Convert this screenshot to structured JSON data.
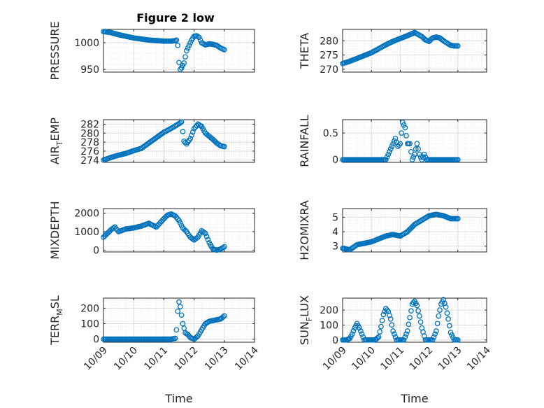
{
  "figure_title": "Figure 2 low",
  "colors": {
    "marker": "#0072BD",
    "axis": "#262626",
    "grid": "#dcdcdc"
  },
  "chart_data": [
    {
      "type": "scatter",
      "ylabel": "PRESSURE",
      "ylabel_sub": null,
      "ylim": [
        945,
        1025
      ],
      "yticks": [
        950,
        1000
      ],
      "yticklabels": [
        "950",
        "1000"
      ],
      "xlim": [
        "10/09",
        "10/14"
      ],
      "xtick_labels_shown": false,
      "xlabel": "",
      "x": [
        "10/09 00:00",
        "10/09 06:00",
        "10/09 12:00",
        "10/09 18:00",
        "10/10 00:00",
        "10/10 06:00",
        "10/10 12:00",
        "10/10 18:00",
        "10/11 00:00",
        "10/11 06:00",
        "10/11 09:00",
        "10/11 10:00",
        "10/11 11:00",
        "10/11 12:00",
        "10/11 13:00",
        "10/11 14:00",
        "10/11 16:00",
        "10/11 18:00",
        "10/11 20:00",
        "10/11 22:00",
        "10/12 00:00",
        "10/12 02:00",
        "10/12 04:00",
        "10/12 06:00",
        "10/12 09:00",
        "10/12 12:00",
        "10/12 15:00",
        "10/12 18:00",
        "10/12 21:00",
        "10/13 00:00"
      ],
      "y": [
        1021,
        1019,
        1015,
        1012,
        1009,
        1007,
        1005,
        1004,
        1003,
        1003,
        1004,
        1005,
        995,
        963,
        950,
        953,
        962,
        985,
        995,
        1005,
        1012,
        1013,
        1010,
        1000,
        996,
        998,
        997,
        995,
        990,
        987
      ]
    },
    {
      "type": "scatter",
      "ylabel": "THETA",
      "ylabel_sub": null,
      "ylim": [
        269,
        284
      ],
      "yticks": [
        270,
        275,
        280
      ],
      "yticklabels": [
        "270",
        "275",
        "280"
      ],
      "xlim": [
        "10/09",
        "10/14"
      ],
      "xtick_labels_shown": false,
      "xlabel": "",
      "x": [
        "10/09 00:00",
        "10/09 06:00",
        "10/09 12:00",
        "10/09 18:00",
        "10/10 00:00",
        "10/10 06:00",
        "10/10 12:00",
        "10/10 18:00",
        "10/11 00:00",
        "10/11 06:00",
        "10/11 12:00",
        "10/11 18:00",
        "10/11 21:00",
        "10/12 00:00",
        "10/12 03:00",
        "10/12 06:00",
        "10/12 09:00",
        "10/12 12:00",
        "10/12 15:00",
        "10/12 18:00",
        "10/12 21:00",
        "10/13 00:00"
      ],
      "y": [
        272,
        272.8,
        273.8,
        274.8,
        275.8,
        277.2,
        278.6,
        279.8,
        280.8,
        281.8,
        282.9,
        281.5,
        280.3,
        279.8,
        281,
        281.3,
        281,
        280,
        279.2,
        278.4,
        278.2,
        278.2
      ]
    },
    {
      "type": "scatter",
      "ylabel": "AIR",
      "ylabel_sub": "T",
      "ylabel_rest": "EMP",
      "ylim": [
        273.5,
        283
      ],
      "yticks": [
        274,
        276,
        278,
        280,
        282
      ],
      "yticklabels": [
        "274",
        "276",
        "278",
        "280",
        "282"
      ],
      "xlim": [
        "10/09",
        "10/14"
      ],
      "xtick_labels_shown": false,
      "xlabel": "",
      "x": [
        "10/09 00:00",
        "10/09 06:00",
        "10/09 12:00",
        "10/09 18:00",
        "10/10 00:00",
        "10/10 06:00",
        "10/10 12:00",
        "10/10 18:00",
        "10/11 00:00",
        "10/11 06:00",
        "10/11 12:00",
        "10/11 14:00",
        "10/11 16:00",
        "10/11 18:00",
        "10/11 21:00",
        "10/12 00:00",
        "10/12 03:00",
        "10/12 06:00",
        "10/12 09:00",
        "10/12 12:00",
        "10/12 15:00",
        "10/12 18:00",
        "10/12 21:00",
        "10/13 00:00"
      ],
      "y": [
        274,
        274.6,
        275.1,
        275.5,
        276.1,
        276.6,
        277.8,
        279,
        280.2,
        281.1,
        282.1,
        282.5,
        278.2,
        277.6,
        278.8,
        281,
        282,
        281.5,
        280,
        279.3,
        278.6,
        277.8,
        277.2,
        277
      ]
    },
    {
      "type": "scatter",
      "ylabel": "RAINFALL",
      "ylabel_sub": null,
      "ylim": [
        -0.05,
        0.75
      ],
      "yticks": [
        0,
        0.5
      ],
      "yticklabels": [
        "0",
        "0.5"
      ],
      "xlim": [
        "10/09",
        "10/14"
      ],
      "xtick_labels_shown": false,
      "xlabel": "",
      "x": [
        "10/09 00:00",
        "10/09 06:00",
        "10/09 12:00",
        "10/09 18:00",
        "10/10 00:00",
        "10/10 06:00",
        "10/10 12:00",
        "10/10 18:00",
        "10/10 20:00",
        "10/10 22:00",
        "10/11 00:00",
        "10/11 02:00",
        "10/11 04:00",
        "10/11 06:00",
        "10/11 08:00",
        "10/11 10:00",
        "10/11 12:00",
        "10/11 14:00",
        "10/11 16:00",
        "10/11 18:00",
        "10/11 20:00",
        "10/11 22:00",
        "10/12 00:00",
        "10/12 06:00",
        "10/12 12:00",
        "10/12 18:00",
        "10/13 00:00"
      ],
      "y": [
        0,
        0,
        0,
        0,
        0,
        0,
        0,
        0.3,
        0.4,
        0.25,
        0.3,
        0.7,
        0.6,
        0.3,
        0.3,
        0,
        0.1,
        0.3,
        0.1,
        0,
        0.1,
        0,
        0,
        0,
        0,
        0,
        0
      ]
    },
    {
      "type": "scatter",
      "ylabel": "MIXDEPTH",
      "ylabel_sub": null,
      "ylim": [
        -100,
        2250
      ],
      "yticks": [
        0,
        1000,
        2000
      ],
      "yticklabels": [
        "0",
        "1000",
        "2000"
      ],
      "xlim": [
        "10/09",
        "10/14"
      ],
      "xtick_labels_shown": false,
      "xlabel": "",
      "x": [
        "10/09 00:00",
        "10/09 03:00",
        "10/09 06:00",
        "10/09 09:00",
        "10/09 12:00",
        "10/09 18:00",
        "10/10 00:00",
        "10/10 06:00",
        "10/10 12:00",
        "10/10 18:00",
        "10/11 00:00",
        "10/11 03:00",
        "10/11 06:00",
        "10/11 09:00",
        "10/11 12:00",
        "10/11 15:00",
        "10/11 18:00",
        "10/11 21:00",
        "10/12 00:00",
        "10/12 03:00",
        "10/12 06:00",
        "10/12 09:00",
        "10/12 12:00",
        "10/12 15:00",
        "10/12 18:00",
        "10/12 21:00",
        "10/13 00:00"
      ],
      "y": [
        700,
        900,
        1100,
        1250,
        1000,
        1150,
        1200,
        1300,
        1450,
        1250,
        1700,
        1900,
        1950,
        1850,
        1600,
        1200,
        1000,
        700,
        550,
        700,
        1050,
        900,
        400,
        50,
        0,
        50,
        180
      ]
    },
    {
      "type": "scatter",
      "ylabel": "H2OMIXRA",
      "ylabel_sub": null,
      "ylim": [
        2.6,
        5.6
      ],
      "yticks": [
        3,
        4,
        5
      ],
      "yticklabels": [
        "3",
        "4",
        "5"
      ],
      "xlim": [
        "10/09",
        "10/14"
      ],
      "xtick_labels_shown": false,
      "xlabel": "",
      "x": [
        "10/09 00:00",
        "10/09 06:00",
        "10/09 12:00",
        "10/09 18:00",
        "10/10 00:00",
        "10/10 06:00",
        "10/10 12:00",
        "10/10 18:00",
        "10/11 00:00",
        "10/11 06:00",
        "10/11 12:00",
        "10/11 18:00",
        "10/12 00:00",
        "10/12 06:00",
        "10/12 12:00",
        "10/12 18:00",
        "10/13 00:00"
      ],
      "y": [
        2.85,
        2.75,
        3.1,
        3.2,
        3.3,
        3.5,
        3.7,
        3.8,
        3.7,
        4.0,
        4.5,
        4.8,
        5.1,
        5.2,
        5.1,
        4.9,
        4.9
      ]
    },
    {
      "type": "scatter",
      "ylabel": "TERR",
      "ylabel_sub": "M",
      "ylabel_rest": "SL",
      "ylim": [
        -20,
        265
      ],
      "yticks": [
        0,
        100,
        200
      ],
      "yticklabels": [
        "0",
        "100",
        "200"
      ],
      "xlim": [
        "10/09",
        "10/14"
      ],
      "xtick_labels": [
        "10/09",
        "10/10",
        "10/11",
        "10/12",
        "10/13",
        "10/14"
      ],
      "xlabel": "Time",
      "x": [
        "10/09 00:00",
        "10/09 12:00",
        "10/10 00:00",
        "10/10 12:00",
        "10/11 00:00",
        "10/11 06:00",
        "10/11 09:00",
        "10/11 10:00",
        "10/11 11:00",
        "10/11 12:00",
        "10/11 13:00",
        "10/11 15:00",
        "10/11 17:00",
        "10/11 19:00",
        "10/11 21:00",
        "10/12 00:00",
        "10/12 03:00",
        "10/12 06:00",
        "10/12 09:00",
        "10/12 12:00",
        "10/12 15:00",
        "10/12 18:00",
        "10/12 21:00",
        "10/13 00:00"
      ],
      "y": [
        0,
        0,
        0,
        0,
        0,
        0,
        5,
        60,
        180,
        240,
        210,
        100,
        40,
        30,
        10,
        0,
        20,
        60,
        100,
        115,
        120,
        125,
        130,
        150
      ]
    },
    {
      "type": "scatter",
      "ylabel": "SUN",
      "ylabel_sub": "F",
      "ylabel_rest": "LUX",
      "ylim": [
        -15,
        280
      ],
      "yticks": [
        0,
        100,
        200
      ],
      "yticklabels": [
        "0",
        "100",
        "200"
      ],
      "xlim": [
        "10/09",
        "10/14"
      ],
      "xtick_labels": [
        "10/09",
        "10/10",
        "10/11",
        "10/12",
        "10/13",
        "10/14"
      ],
      "xlabel": "Time",
      "x": [
        "10/09 00:00",
        "10/09 03:00",
        "10/09 06:00",
        "10/09 08:00",
        "10/09 10:00",
        "10/09 12:00",
        "10/09 14:00",
        "10/09 16:00",
        "10/09 18:00",
        "10/09 21:00",
        "10/10 00:00",
        "10/10 03:00",
        "10/10 06:00",
        "10/10 08:00",
        "10/10 10:00",
        "10/10 12:00",
        "10/10 14:00",
        "10/10 16:00",
        "10/10 18:00",
        "10/10 21:00",
        "10/11 00:00",
        "10/11 03:00",
        "10/11 06:00",
        "10/11 08:00",
        "10/11 10:00",
        "10/11 12:00",
        "10/11 14:00",
        "10/11 16:00",
        "10/11 18:00",
        "10/11 21:00",
        "10/12 00:00",
        "10/12 03:00",
        "10/12 06:00",
        "10/12 08:00",
        "10/12 10:00",
        "10/12 12:00",
        "10/12 14:00",
        "10/12 16:00",
        "10/12 18:00",
        "10/12 21:00",
        "10/13 00:00"
      ],
      "y": [
        0,
        0,
        10,
        40,
        80,
        110,
        80,
        40,
        0,
        0,
        0,
        0,
        20,
        90,
        170,
        210,
        190,
        140,
        60,
        0,
        0,
        0,
        60,
        150,
        240,
        260,
        230,
        160,
        80,
        0,
        0,
        0,
        60,
        160,
        240,
        270,
        220,
        140,
        50,
        0,
        0
      ]
    }
  ]
}
